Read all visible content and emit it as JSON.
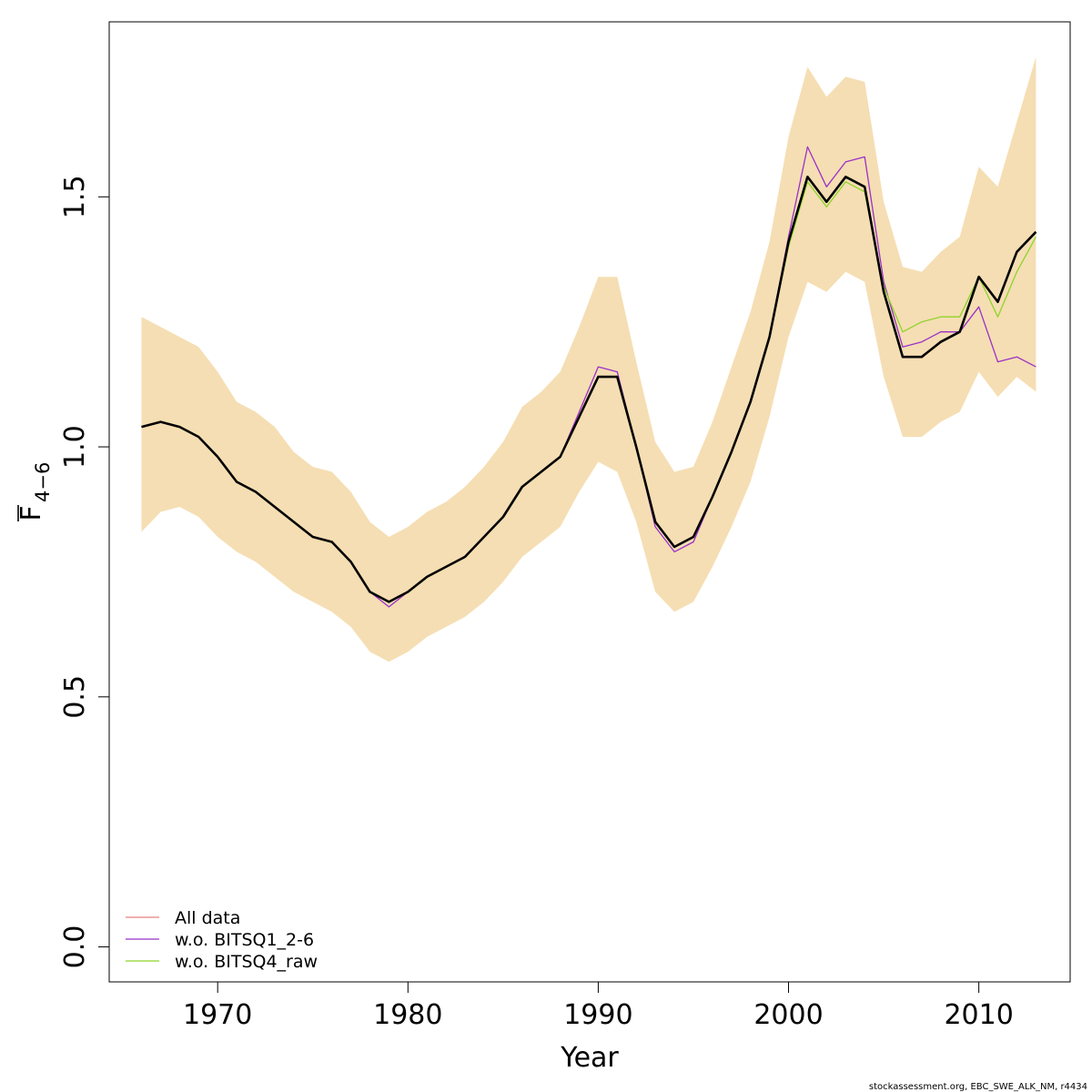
{
  "chart_data": {
    "type": "line",
    "xlabel": "Year",
    "ylabel_main": "F",
    "ylabel_sub": "4−6",
    "xlim": [
      1964.3,
      2014.8
    ],
    "ylim": [
      -0.07,
      1.85
    ],
    "xticks": [
      1970,
      1980,
      1990,
      2000,
      2010
    ],
    "yticks": [
      0.0,
      0.5,
      1.0,
      1.5
    ],
    "ytick_labels": [
      "0.0",
      "0.5",
      "1.0",
      "1.5"
    ],
    "x": [
      1966,
      1967,
      1968,
      1969,
      1970,
      1971,
      1972,
      1973,
      1974,
      1975,
      1976,
      1977,
      1978,
      1979,
      1980,
      1981,
      1982,
      1983,
      1984,
      1985,
      1986,
      1987,
      1988,
      1989,
      1990,
      1991,
      1992,
      1993,
      1994,
      1995,
      1996,
      1997,
      1998,
      1999,
      2000,
      2001,
      2002,
      2003,
      2004,
      2005,
      2006,
      2007,
      2008,
      2009,
      2010,
      2011,
      2012,
      2013
    ],
    "band": {
      "color": "#f5deb3",
      "upper": [
        1.26,
        1.24,
        1.22,
        1.2,
        1.15,
        1.09,
        1.07,
        1.04,
        0.99,
        0.96,
        0.95,
        0.91,
        0.85,
        0.82,
        0.84,
        0.87,
        0.89,
        0.92,
        0.96,
        1.01,
        1.08,
        1.11,
        1.15,
        1.24,
        1.34,
        1.34,
        1.17,
        1.01,
        0.95,
        0.96,
        1.05,
        1.16,
        1.27,
        1.41,
        1.62,
        1.76,
        1.7,
        1.74,
        1.73,
        1.49,
        1.36,
        1.35,
        1.39,
        1.42,
        1.56,
        1.52,
        1.65,
        1.78
      ],
      "lower": [
        0.83,
        0.87,
        0.88,
        0.86,
        0.82,
        0.79,
        0.77,
        0.74,
        0.71,
        0.69,
        0.67,
        0.64,
        0.59,
        0.57,
        0.59,
        0.62,
        0.64,
        0.66,
        0.69,
        0.73,
        0.78,
        0.81,
        0.84,
        0.91,
        0.97,
        0.95,
        0.85,
        0.71,
        0.67,
        0.69,
        0.76,
        0.84,
        0.93,
        1.06,
        1.22,
        1.33,
        1.31,
        1.35,
        1.33,
        1.14,
        1.02,
        1.02,
        1.05,
        1.07,
        1.15,
        1.1,
        1.14,
        1.11
      ]
    },
    "main_line": {
      "color": "#000000",
      "values": [
        1.04,
        1.05,
        1.04,
        1.02,
        0.98,
        0.93,
        0.91,
        0.88,
        0.85,
        0.82,
        0.81,
        0.77,
        0.71,
        0.69,
        0.71,
        0.74,
        0.76,
        0.78,
        0.82,
        0.86,
        0.92,
        0.95,
        0.98,
        1.06,
        1.14,
        1.14,
        1.0,
        0.85,
        0.8,
        0.82,
        0.9,
        0.99,
        1.09,
        1.22,
        1.41,
        1.54,
        1.49,
        1.54,
        1.52,
        1.31,
        1.18,
        1.18,
        1.21,
        1.23,
        1.34,
        1.29,
        1.39,
        1.43
      ]
    },
    "series": [
      {
        "name": "All data",
        "color": "#e88080",
        "values": [
          1.04,
          1.05,
          1.04,
          1.02,
          0.98,
          0.93,
          0.91,
          0.88,
          0.85,
          0.82,
          0.81,
          0.77,
          0.71,
          0.69,
          0.71,
          0.74,
          0.76,
          0.78,
          0.82,
          0.86,
          0.92,
          0.95,
          0.98,
          1.06,
          1.14,
          1.14,
          1.0,
          0.85,
          0.8,
          0.82,
          0.9,
          0.99,
          1.09,
          1.22,
          1.41,
          1.54,
          1.49,
          1.54,
          1.52,
          1.31,
          1.18,
          1.18,
          1.21,
          1.23,
          1.34,
          1.29,
          1.39,
          1.43
        ]
      },
      {
        "name": "w.o. BITSQ1_2-6",
        "color": "#9b30c8",
        "values": [
          1.04,
          1.05,
          1.04,
          1.02,
          0.98,
          0.93,
          0.91,
          0.88,
          0.85,
          0.82,
          0.81,
          0.77,
          0.71,
          0.68,
          0.71,
          0.74,
          0.76,
          0.78,
          0.82,
          0.86,
          0.92,
          0.95,
          0.98,
          1.07,
          1.16,
          1.15,
          1.0,
          0.84,
          0.79,
          0.81,
          0.9,
          0.99,
          1.09,
          1.22,
          1.42,
          1.6,
          1.52,
          1.57,
          1.58,
          1.33,
          1.2,
          1.21,
          1.23,
          1.23,
          1.28,
          1.17,
          1.18,
          1.16
        ]
      },
      {
        "name": "w.o. BITSQ4_raw",
        "color": "#8fd42a",
        "values": [
          1.04,
          1.05,
          1.04,
          1.02,
          0.98,
          0.93,
          0.91,
          0.88,
          0.85,
          0.82,
          0.81,
          0.77,
          0.71,
          0.69,
          0.71,
          0.74,
          0.76,
          0.78,
          0.82,
          0.86,
          0.92,
          0.95,
          0.98,
          1.06,
          1.14,
          1.14,
          1.0,
          0.85,
          0.8,
          0.82,
          0.9,
          0.99,
          1.09,
          1.22,
          1.4,
          1.53,
          1.48,
          1.53,
          1.51,
          1.32,
          1.23,
          1.25,
          1.26,
          1.26,
          1.34,
          1.26,
          1.35,
          1.42
        ]
      }
    ],
    "legend_placement": "bottom-left",
    "grid": false
  },
  "footer": {
    "text": "stockassessment.org, EBC_SWE_ALK_NM, r4434"
  }
}
